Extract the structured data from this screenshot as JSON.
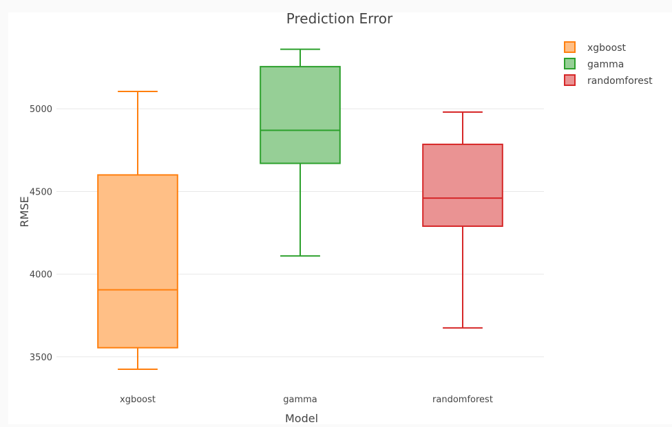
{
  "chart_data": {
    "type": "box",
    "title": "Prediction Error",
    "xlabel": "Model",
    "ylabel": "RMSE",
    "ylim": [
      3350,
      5450
    ],
    "yticks": [
      3500,
      4000,
      4500,
      5000
    ],
    "categories": [
      "xgboost",
      "gamma",
      "randomforest"
    ],
    "series": [
      {
        "name": "xgboost",
        "min": 3425,
        "q1": 3555,
        "median": 3905,
        "q3": 4600,
        "max": 5105,
        "stroke": "#ff7f0e",
        "fill": "#ffbf86"
      },
      {
        "name": "gamma",
        "min": 4110,
        "q1": 4670,
        "median": 4870,
        "q3": 5255,
        "max": 5360,
        "stroke": "#2ca02c",
        "fill": "#96cf96"
      },
      {
        "name": "randomforest",
        "min": 3675,
        "q1": 4290,
        "median": 4460,
        "q3": 4785,
        "max": 4980,
        "stroke": "#d62728",
        "fill": "#ea9393"
      }
    ],
    "legend_position": "top-right",
    "grid": true
  }
}
